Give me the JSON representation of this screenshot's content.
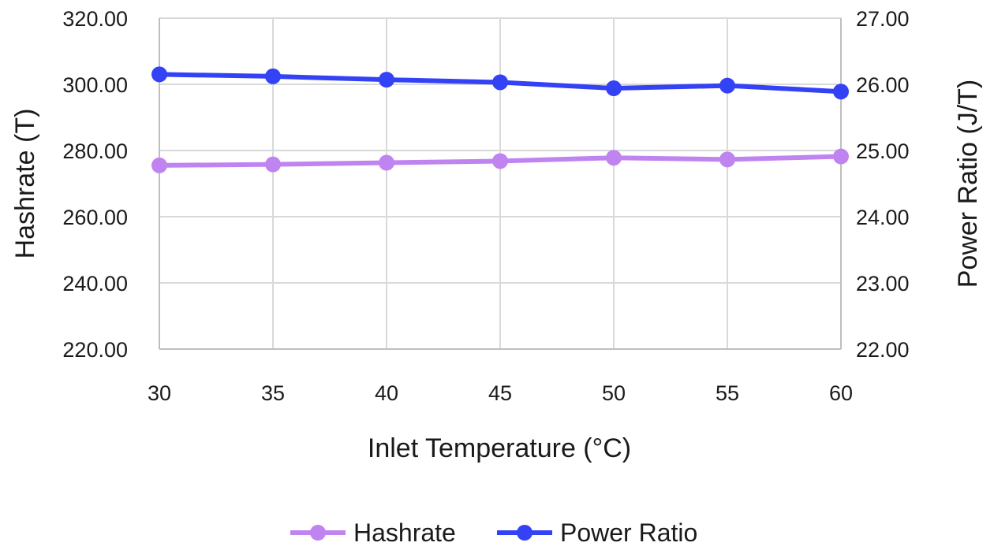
{
  "chart_data": {
    "type": "line",
    "x": [
      30,
      35,
      40,
      45,
      50,
      55,
      60
    ],
    "x_tick_labels": [
      "30",
      "35",
      "40",
      "45",
      "50",
      "55",
      "60"
    ],
    "xlabel": "Inlet Temperature (°C)",
    "ylabel": "Hashrate (T)",
    "y2label": "Power Ratio (J/T)",
    "ylim": [
      220,
      320
    ],
    "y2lim": [
      22,
      27
    ],
    "y_tick_labels": [
      "220.00",
      "240.00",
      "260.00",
      "280.00",
      "300.00",
      "320.00"
    ],
    "y2_tick_labels": [
      "22.00",
      "23.00",
      "24.00",
      "25.00",
      "26.00",
      "27.00"
    ],
    "grid": true,
    "legend_position": "bottom",
    "series": [
      {
        "name": "Hashrate",
        "axis": "left",
        "color": "#c084f0",
        "values": [
          275.5,
          275.8,
          276.3,
          276.8,
          277.8,
          277.3,
          278.2
        ]
      },
      {
        "name": "Power Ratio",
        "axis": "right",
        "color": "#3442f5",
        "values": [
          26.15,
          26.12,
          26.07,
          26.03,
          25.94,
          25.98,
          25.89
        ]
      }
    ]
  }
}
